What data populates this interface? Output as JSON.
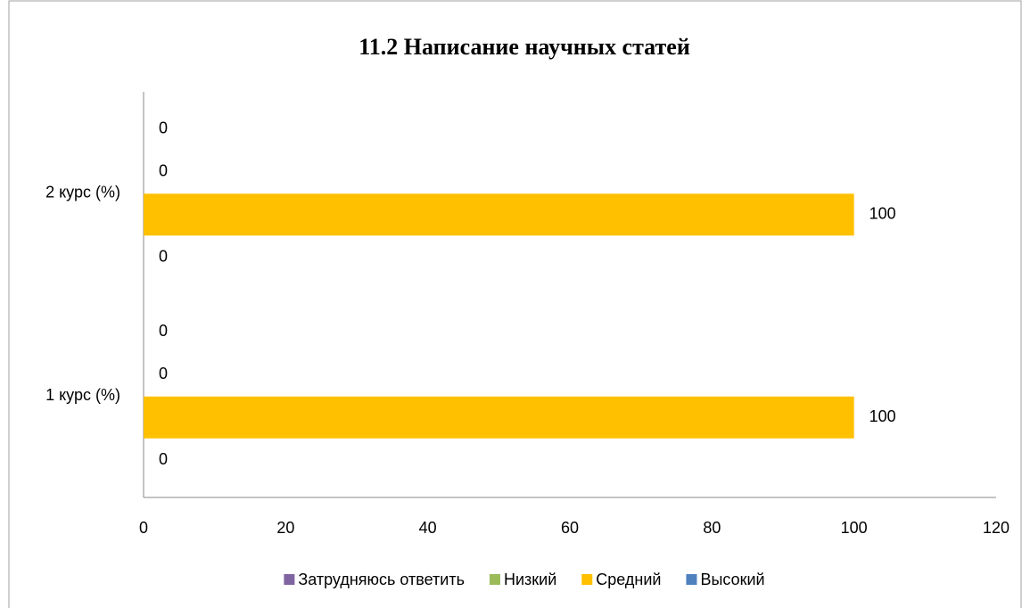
{
  "chart_data": {
    "type": "bar",
    "orientation": "horizontal",
    "title": "11.2 Написание научных статей",
    "categories": [
      "1 курс (%)",
      "2 курс (%)"
    ],
    "series": [
      {
        "name": "Затрудняюсь ответить",
        "color": "#8064a2",
        "values": [
          0,
          0
        ]
      },
      {
        "name": "Низкий",
        "color": "#9bbb59",
        "values": [
          0,
          0
        ]
      },
      {
        "name": "Средний",
        "color": "#ffc000",
        "values": [
          100,
          100
        ]
      },
      {
        "name": "Высокий",
        "color": "#4f81bd",
        "values": [
          0,
          0
        ]
      }
    ],
    "xlim": [
      0,
      120
    ],
    "xticks": [
      0,
      20,
      40,
      60,
      80,
      100,
      120
    ],
    "grid": false,
    "legend": "bottom"
  }
}
